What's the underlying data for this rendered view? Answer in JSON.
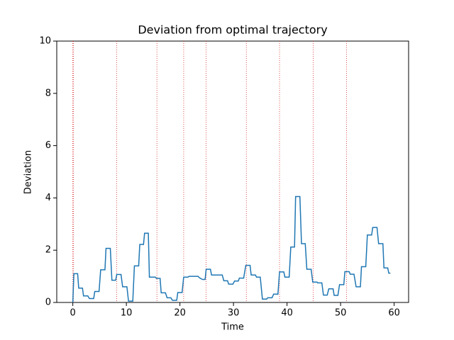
{
  "chart_data": {
    "type": "line",
    "title": "Deviation from optimal trajectory",
    "x_label": "Time",
    "y_label": "Deviation",
    "xlim": [
      -3,
      62.7
    ],
    "ylim": [
      0,
      10
    ],
    "xticks": [
      0,
      10,
      20,
      30,
      40,
      50,
      60
    ],
    "yticks": [
      0,
      2,
      4,
      6,
      8,
      10
    ],
    "vlines": {
      "color": "#d62728",
      "x": [
        0,
        0.1,
        8.2,
        15.7,
        20.7,
        24.9,
        32.4,
        38.6,
        44.9,
        51.1
      ]
    },
    "series": [
      {
        "color": "#1f77b4",
        "x": [
          0,
          0.2,
          0.9,
          1.1,
          1.8,
          2.0,
          2.8,
          3.1,
          3.9,
          4.1,
          4.9,
          5.2,
          6.0,
          6.2,
          7.0,
          7.3,
          8.0,
          8.2,
          9.0,
          9.3,
          10.1,
          10.4,
          11.2,
          11.5,
          12.3,
          12.5,
          13.2,
          13.4,
          14.1,
          14.3,
          15.4,
          15.6,
          16.3,
          16.5,
          17.3,
          17.6,
          18.3,
          18.6,
          19.4,
          19.6,
          20.4,
          20.7,
          21.5,
          21.7,
          23.4,
          23.6,
          24.2,
          24.7,
          24.9,
          25.7,
          25.9,
          27.9,
          28.2,
          28.9,
          29.1,
          29.9,
          30.2,
          30.9,
          31.1,
          31.9,
          32.3,
          33.1,
          33.3,
          34.1,
          34.3,
          35.0,
          35.4,
          36.2,
          36.4,
          37.2,
          37.5,
          38.3,
          38.6,
          39.4,
          39.6,
          40.4,
          40.7,
          41.4,
          41.6,
          42.4,
          42.7,
          43.4,
          43.7,
          44.5,
          44.8,
          45.6,
          45.7,
          46.5,
          46.8,
          47.5,
          47.8,
          48.6,
          48.8,
          49.5,
          49.8,
          50.6,
          50.8,
          51.6,
          51.8,
          52.5,
          52.9,
          53.7,
          53.9,
          54.7,
          55.0,
          55.8,
          56.0,
          56.8,
          57.1,
          57.9,
          58.1,
          58.8,
          59.0,
          59.3
        ],
        "values": [
          0,
          1.1,
          1.1,
          0.55,
          0.55,
          0.25,
          0.25,
          0.15,
          0.15,
          0.42,
          0.42,
          1.25,
          1.25,
          2.07,
          2.07,
          0.85,
          0.85,
          1.07,
          1.07,
          0.6,
          0.6,
          0.05,
          0.05,
          1.4,
          1.4,
          2.22,
          2.22,
          2.65,
          2.65,
          0.97,
          0.97,
          0.92,
          0.92,
          0.37,
          0.37,
          0.18,
          0.18,
          0.08,
          0.08,
          0.38,
          0.38,
          0.97,
          0.97,
          1.0,
          1.0,
          0.95,
          0.88,
          0.88,
          1.27,
          1.27,
          1.05,
          1.05,
          0.83,
          0.83,
          0.7,
          0.7,
          0.82,
          0.82,
          0.93,
          0.93,
          1.42,
          1.42,
          1.05,
          1.05,
          0.97,
          0.97,
          0.13,
          0.13,
          0.18,
          0.18,
          0.32,
          0.32,
          1.17,
          1.17,
          0.97,
          0.97,
          2.12,
          2.12,
          4.05,
          4.05,
          2.25,
          2.25,
          1.27,
          1.27,
          0.78,
          0.78,
          0.75,
          0.75,
          0.28,
          0.28,
          0.52,
          0.52,
          0.27,
          0.27,
          0.68,
          0.68,
          1.18,
          1.18,
          1.08,
          1.08,
          0.6,
          0.6,
          1.37,
          1.37,
          2.58,
          2.58,
          2.87,
          2.87,
          2.25,
          2.25,
          1.32,
          1.32,
          1.12,
          1.12
        ]
      }
    ]
  }
}
